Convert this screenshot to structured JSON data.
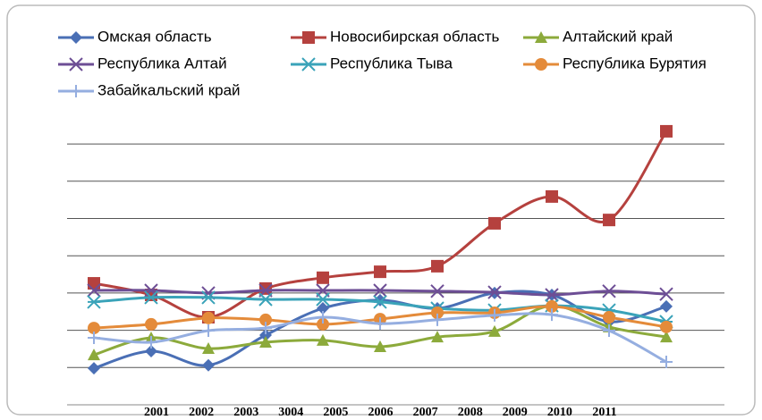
{
  "chart_data": {
    "type": "line",
    "categories": [
      "2001",
      "2002",
      "2003",
      "3004",
      "2005",
      "2006",
      "2007",
      "2008",
      "2009",
      "2010",
      "2011"
    ],
    "ylim": [
      0,
      8
    ],
    "yticks": [
      0,
      1,
      2,
      3,
      4,
      5,
      6,
      7
    ],
    "grid": true,
    "series": [
      {
        "name": "Омская область",
        "color": "#4a6fb5",
        "marker": "diamond",
        "values": [
          0.98,
          1.44,
          1.06,
          1.87,
          2.59,
          2.81,
          2.59,
          3.0,
          2.95,
          2.23,
          2.64
        ]
      },
      {
        "name": "Новосибирская область",
        "color": "#b5413e",
        "marker": "square",
        "values": [
          3.26,
          2.95,
          2.35,
          3.12,
          3.41,
          3.57,
          3.72,
          4.87,
          5.59,
          4.96,
          7.34
        ]
      },
      {
        "name": "Алтайский край",
        "color": "#8caa3b",
        "marker": "triangle",
        "values": [
          1.34,
          1.8,
          1.51,
          1.68,
          1.73,
          1.56,
          1.82,
          1.97,
          2.66,
          2.09,
          1.82
        ]
      },
      {
        "name": "Республика Алтай",
        "color": "#6d4e95",
        "marker": "x",
        "values": [
          3.07,
          3.07,
          3.0,
          3.07,
          3.07,
          3.07,
          3.05,
          3.02,
          2.95,
          3.05,
          2.97
        ]
      },
      {
        "name": "Республика Тыва",
        "color": "#3aa3b9",
        "marker": "asterisk",
        "values": [
          2.76,
          2.88,
          2.88,
          2.83,
          2.83,
          2.76,
          2.59,
          2.54,
          2.66,
          2.54,
          2.23
        ]
      },
      {
        "name": "Республика Бурятия",
        "color": "#e48b3a",
        "marker": "circle",
        "values": [
          2.06,
          2.16,
          2.33,
          2.28,
          2.16,
          2.3,
          2.47,
          2.47,
          2.64,
          2.35,
          2.09
        ]
      },
      {
        "name": "Забайкальский край",
        "color": "#95aee0",
        "marker": "plus",
        "values": [
          1.8,
          1.68,
          1.99,
          2.06,
          2.35,
          2.18,
          2.28,
          2.4,
          2.42,
          1.99,
          1.15
        ]
      }
    ]
  }
}
